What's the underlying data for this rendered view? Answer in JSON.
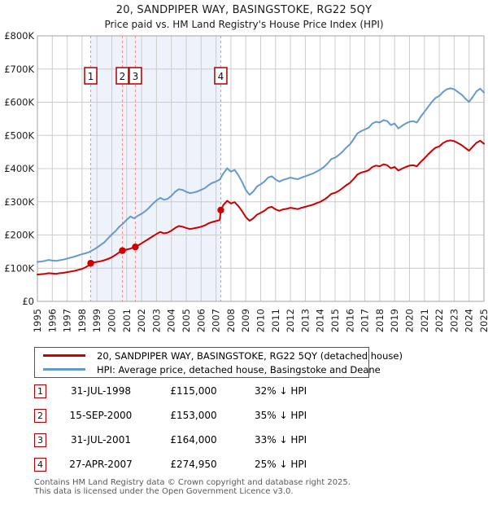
{
  "header": {
    "title": "20, SANDPIPER WAY, BASINGSTOKE, RG22 5QY",
    "subtitle": "Price paid vs. HM Land Registry's House Price Index (HPI)"
  },
  "chart_data": {
    "type": "line",
    "title": "20, SANDPIPER WAY, BASINGSTOKE, RG22 5QY",
    "subtitle": "Price paid vs. HM Land Registry's House Price Index (HPI)",
    "unit": "GBP_thousands",
    "grid": true,
    "x_range": [
      1995,
      2025
    ],
    "y_range_thousands": [
      0,
      800
    ],
    "y_tick_labels": [
      "£0",
      "£100K",
      "£200K",
      "£300K",
      "£400K",
      "£500K",
      "£600K",
      "£700K",
      "£800K"
    ],
    "x_tick_labels": [
      "1995",
      "1996",
      "1997",
      "1998",
      "1999",
      "2000",
      "2001",
      "2002",
      "2003",
      "2004",
      "2005",
      "2006",
      "2007",
      "2008",
      "2009",
      "2010",
      "2011",
      "2012",
      "2013",
      "2014",
      "2015",
      "2016",
      "2017",
      "2018",
      "2019",
      "2020",
      "2021",
      "2022",
      "2023",
      "2024",
      "2025"
    ],
    "shaded_span_years": [
      1998.58,
      2007.32
    ],
    "sale_markers": [
      {
        "label": "1",
        "year": 1998.58,
        "value_thousands": 115
      },
      {
        "label": "2",
        "year": 2000.71,
        "value_thousands": 153
      },
      {
        "label": "3",
        "year": 2001.58,
        "value_thousands": 164
      },
      {
        "label": "4",
        "year": 2007.32,
        "value_thousands": 274.95
      }
    ],
    "series": [
      {
        "name": "HPI: Average price, detached house, Basingstoke and Deane",
        "color": "#6699cc",
        "points": [
          [
            1995,
            119
          ],
          [
            1995.25,
            120
          ],
          [
            1995.5,
            122
          ],
          [
            1995.75,
            125
          ],
          [
            1996,
            123
          ],
          [
            1996.25,
            122
          ],
          [
            1996.5,
            124
          ],
          [
            1996.75,
            126
          ],
          [
            1997,
            129
          ],
          [
            1997.25,
            132
          ],
          [
            1997.5,
            135
          ],
          [
            1997.75,
            139
          ],
          [
            1998,
            142
          ],
          [
            1998.25,
            145
          ],
          [
            1998.5,
            149
          ],
          [
            1998.75,
            155
          ],
          [
            1999,
            162
          ],
          [
            1999.25,
            170
          ],
          [
            1999.5,
            178
          ],
          [
            1999.75,
            190
          ],
          [
            2000,
            202
          ],
          [
            2000.25,
            212
          ],
          [
            2000.5,
            225
          ],
          [
            2000.75,
            234
          ],
          [
            2001,
            246
          ],
          [
            2001.25,
            256
          ],
          [
            2001.5,
            250
          ],
          [
            2001.75,
            258
          ],
          [
            2002,
            264
          ],
          [
            2002.25,
            272
          ],
          [
            2002.5,
            282
          ],
          [
            2002.75,
            294
          ],
          [
            2003,
            304
          ],
          [
            2003.25,
            312
          ],
          [
            2003.5,
            306
          ],
          [
            2003.75,
            309
          ],
          [
            2004,
            318
          ],
          [
            2004.25,
            330
          ],
          [
            2004.5,
            338
          ],
          [
            2004.75,
            336
          ],
          [
            2005,
            330
          ],
          [
            2005.25,
            326
          ],
          [
            2005.5,
            328
          ],
          [
            2005.75,
            331
          ],
          [
            2006,
            336
          ],
          [
            2006.25,
            341
          ],
          [
            2006.5,
            350
          ],
          [
            2006.75,
            357
          ],
          [
            2007,
            361
          ],
          [
            2007.25,
            367
          ],
          [
            2007.5,
            386
          ],
          [
            2007.75,
            401
          ],
          [
            2008,
            391
          ],
          [
            2008.25,
            396
          ],
          [
            2008.5,
            380
          ],
          [
            2008.75,
            360
          ],
          [
            2009,
            336
          ],
          [
            2009.25,
            321
          ],
          [
            2009.5,
            331
          ],
          [
            2009.75,
            346
          ],
          [
            2010,
            353
          ],
          [
            2010.25,
            361
          ],
          [
            2010.5,
            373
          ],
          [
            2010.75,
            377
          ],
          [
            2011,
            367
          ],
          [
            2011.25,
            361
          ],
          [
            2011.5,
            366
          ],
          [
            2011.75,
            369
          ],
          [
            2012,
            373
          ],
          [
            2012.25,
            370
          ],
          [
            2012.5,
            368
          ],
          [
            2012.75,
            373
          ],
          [
            2013,
            377
          ],
          [
            2013.25,
            381
          ],
          [
            2013.5,
            385
          ],
          [
            2013.75,
            391
          ],
          [
            2014,
            397
          ],
          [
            2014.25,
            405
          ],
          [
            2014.5,
            416
          ],
          [
            2014.75,
            429
          ],
          [
            2015,
            433
          ],
          [
            2015.25,
            441
          ],
          [
            2015.5,
            451
          ],
          [
            2015.75,
            463
          ],
          [
            2016,
            473
          ],
          [
            2016.25,
            489
          ],
          [
            2016.5,
            506
          ],
          [
            2016.75,
            513
          ],
          [
            2017,
            518
          ],
          [
            2017.25,
            523
          ],
          [
            2017.5,
            536
          ],
          [
            2017.75,
            541
          ],
          [
            2018,
            539
          ],
          [
            2018.25,
            546
          ],
          [
            2018.5,
            543
          ],
          [
            2018.75,
            531
          ],
          [
            2019,
            536
          ],
          [
            2019.25,
            521
          ],
          [
            2019.5,
            529
          ],
          [
            2019.75,
            536
          ],
          [
            2020,
            541
          ],
          [
            2020.25,
            543
          ],
          [
            2020.5,
            539
          ],
          [
            2020.75,
            556
          ],
          [
            2021,
            571
          ],
          [
            2021.25,
            586
          ],
          [
            2021.5,
            601
          ],
          [
            2021.75,
            613
          ],
          [
            2022,
            619
          ],
          [
            2022.25,
            631
          ],
          [
            2022.5,
            639
          ],
          [
            2022.75,
            642
          ],
          [
            2023,
            639
          ],
          [
            2023.25,
            631
          ],
          [
            2023.5,
            623
          ],
          [
            2023.75,
            611
          ],
          [
            2024,
            601
          ],
          [
            2024.25,
            616
          ],
          [
            2024.5,
            633
          ],
          [
            2024.75,
            641
          ],
          [
            2025,
            629
          ]
        ]
      },
      {
        "name": "20, SANDPIPER WAY, BASINGSTOKE, RG22 5QY (detached house)",
        "color": "#cc0000",
        "points": [
          [
            1995,
            81
          ],
          [
            1995.25,
            82
          ],
          [
            1995.5,
            83
          ],
          [
            1995.75,
            85
          ],
          [
            1996,
            84
          ],
          [
            1996.25,
            83
          ],
          [
            1996.5,
            85
          ],
          [
            1996.75,
            86
          ],
          [
            1997,
            88
          ],
          [
            1997.25,
            90
          ],
          [
            1997.5,
            92
          ],
          [
            1997.75,
            95
          ],
          [
            1998,
            98
          ],
          [
            1998.25,
            103
          ],
          [
            1998.5,
            110
          ],
          [
            1998.58,
            115
          ],
          [
            1998.75,
            117
          ],
          [
            1999,
            119
          ],
          [
            1999.25,
            121
          ],
          [
            1999.5,
            124
          ],
          [
            1999.75,
            128
          ],
          [
            2000,
            133
          ],
          [
            2000.25,
            140
          ],
          [
            2000.5,
            148
          ],
          [
            2000.71,
            153
          ],
          [
            2001,
            156
          ],
          [
            2001.25,
            159
          ],
          [
            2001.58,
            164
          ],
          [
            2001.75,
            168
          ],
          [
            2002,
            175
          ],
          [
            2002.25,
            182
          ],
          [
            2002.5,
            189
          ],
          [
            2002.75,
            196
          ],
          [
            2003,
            203
          ],
          [
            2003.25,
            209
          ],
          [
            2003.5,
            205
          ],
          [
            2003.75,
            207
          ],
          [
            2004,
            213
          ],
          [
            2004.25,
            221
          ],
          [
            2004.5,
            227
          ],
          [
            2004.75,
            225
          ],
          [
            2005,
            221
          ],
          [
            2005.25,
            218
          ],
          [
            2005.5,
            220
          ],
          [
            2005.75,
            222
          ],
          [
            2006,
            225
          ],
          [
            2006.25,
            229
          ],
          [
            2006.5,
            235
          ],
          [
            2006.75,
            239
          ],
          [
            2007,
            242
          ],
          [
            2007.25,
            245
          ],
          [
            2007.32,
            274.95
          ],
          [
            2007.5,
            291
          ],
          [
            2007.75,
            303
          ],
          [
            2008,
            295
          ],
          [
            2008.25,
            299
          ],
          [
            2008.5,
            287
          ],
          [
            2008.75,
            272
          ],
          [
            2009,
            254
          ],
          [
            2009.25,
            243
          ],
          [
            2009.5,
            250
          ],
          [
            2009.75,
            261
          ],
          [
            2010,
            267
          ],
          [
            2010.25,
            273
          ],
          [
            2010.5,
            282
          ],
          [
            2010.75,
            285
          ],
          [
            2011,
            277
          ],
          [
            2011.25,
            273
          ],
          [
            2011.5,
            277
          ],
          [
            2011.75,
            279
          ],
          [
            2012,
            282
          ],
          [
            2012.25,
            280
          ],
          [
            2012.5,
            278
          ],
          [
            2012.75,
            282
          ],
          [
            2013,
            285
          ],
          [
            2013.25,
            288
          ],
          [
            2013.5,
            291
          ],
          [
            2013.75,
            296
          ],
          [
            2014,
            300
          ],
          [
            2014.25,
            306
          ],
          [
            2014.5,
            314
          ],
          [
            2014.75,
            324
          ],
          [
            2015,
            327
          ],
          [
            2015.25,
            333
          ],
          [
            2015.5,
            341
          ],
          [
            2015.75,
            350
          ],
          [
            2016,
            357
          ],
          [
            2016.25,
            369
          ],
          [
            2016.5,
            382
          ],
          [
            2016.75,
            388
          ],
          [
            2017,
            391
          ],
          [
            2017.25,
            395
          ],
          [
            2017.5,
            405
          ],
          [
            2017.75,
            409
          ],
          [
            2018,
            407
          ],
          [
            2018.25,
            413
          ],
          [
            2018.5,
            410
          ],
          [
            2018.75,
            401
          ],
          [
            2019,
            405
          ],
          [
            2019.25,
            394
          ],
          [
            2019.5,
            400
          ],
          [
            2019.75,
            405
          ],
          [
            2020,
            409
          ],
          [
            2020.25,
            410
          ],
          [
            2020.5,
            407
          ],
          [
            2020.75,
            420
          ],
          [
            2021,
            431
          ],
          [
            2021.25,
            443
          ],
          [
            2021.5,
            454
          ],
          [
            2021.75,
            463
          ],
          [
            2022,
            467
          ],
          [
            2022.25,
            477
          ],
          [
            2022.5,
            483
          ],
          [
            2022.75,
            485
          ],
          [
            2023,
            483
          ],
          [
            2023.25,
            477
          ],
          [
            2023.5,
            471
          ],
          [
            2023.75,
            462
          ],
          [
            2024,
            454
          ],
          [
            2024.25,
            466
          ],
          [
            2024.5,
            478
          ],
          [
            2024.75,
            484
          ],
          [
            2025,
            475
          ]
        ]
      }
    ]
  },
  "legend": {
    "items": [
      {
        "color": "#cc0000",
        "label": "20, SANDPIPER WAY, BASINGSTOKE, RG22 5QY (detached house)"
      },
      {
        "color": "#6699cc",
        "label": "HPI: Average price, detached house, Basingstoke and Deane"
      }
    ]
  },
  "transactions": [
    {
      "num": "1",
      "date": "31-JUL-1998",
      "price": "£115,000",
      "vs_hpi": "32% ↓ HPI"
    },
    {
      "num": "2",
      "date": "15-SEP-2000",
      "price": "£153,000",
      "vs_hpi": "35% ↓ HPI"
    },
    {
      "num": "3",
      "date": "31-JUL-2001",
      "price": "£164,000",
      "vs_hpi": "33% ↓ HPI"
    },
    {
      "num": "4",
      "date": "27-APR-2007",
      "price": "£274,950",
      "vs_hpi": "25% ↓ HPI"
    }
  ],
  "footer": {
    "line1": "Contains HM Land Registry data © Crown copyright and database right 2025.",
    "line2": "This data is licensed under the Open Government Licence v3.0."
  },
  "colors": {
    "property_line": "#cc0000",
    "hpi_line": "#6699cc",
    "shading": "#eef2fa",
    "dashed_line": "#ec8f8f",
    "grid": "#cccccc",
    "plot_border": "#a3a3a3",
    "marker_box_border": "#aa0000",
    "axis_text": "#1a1a1a"
  }
}
